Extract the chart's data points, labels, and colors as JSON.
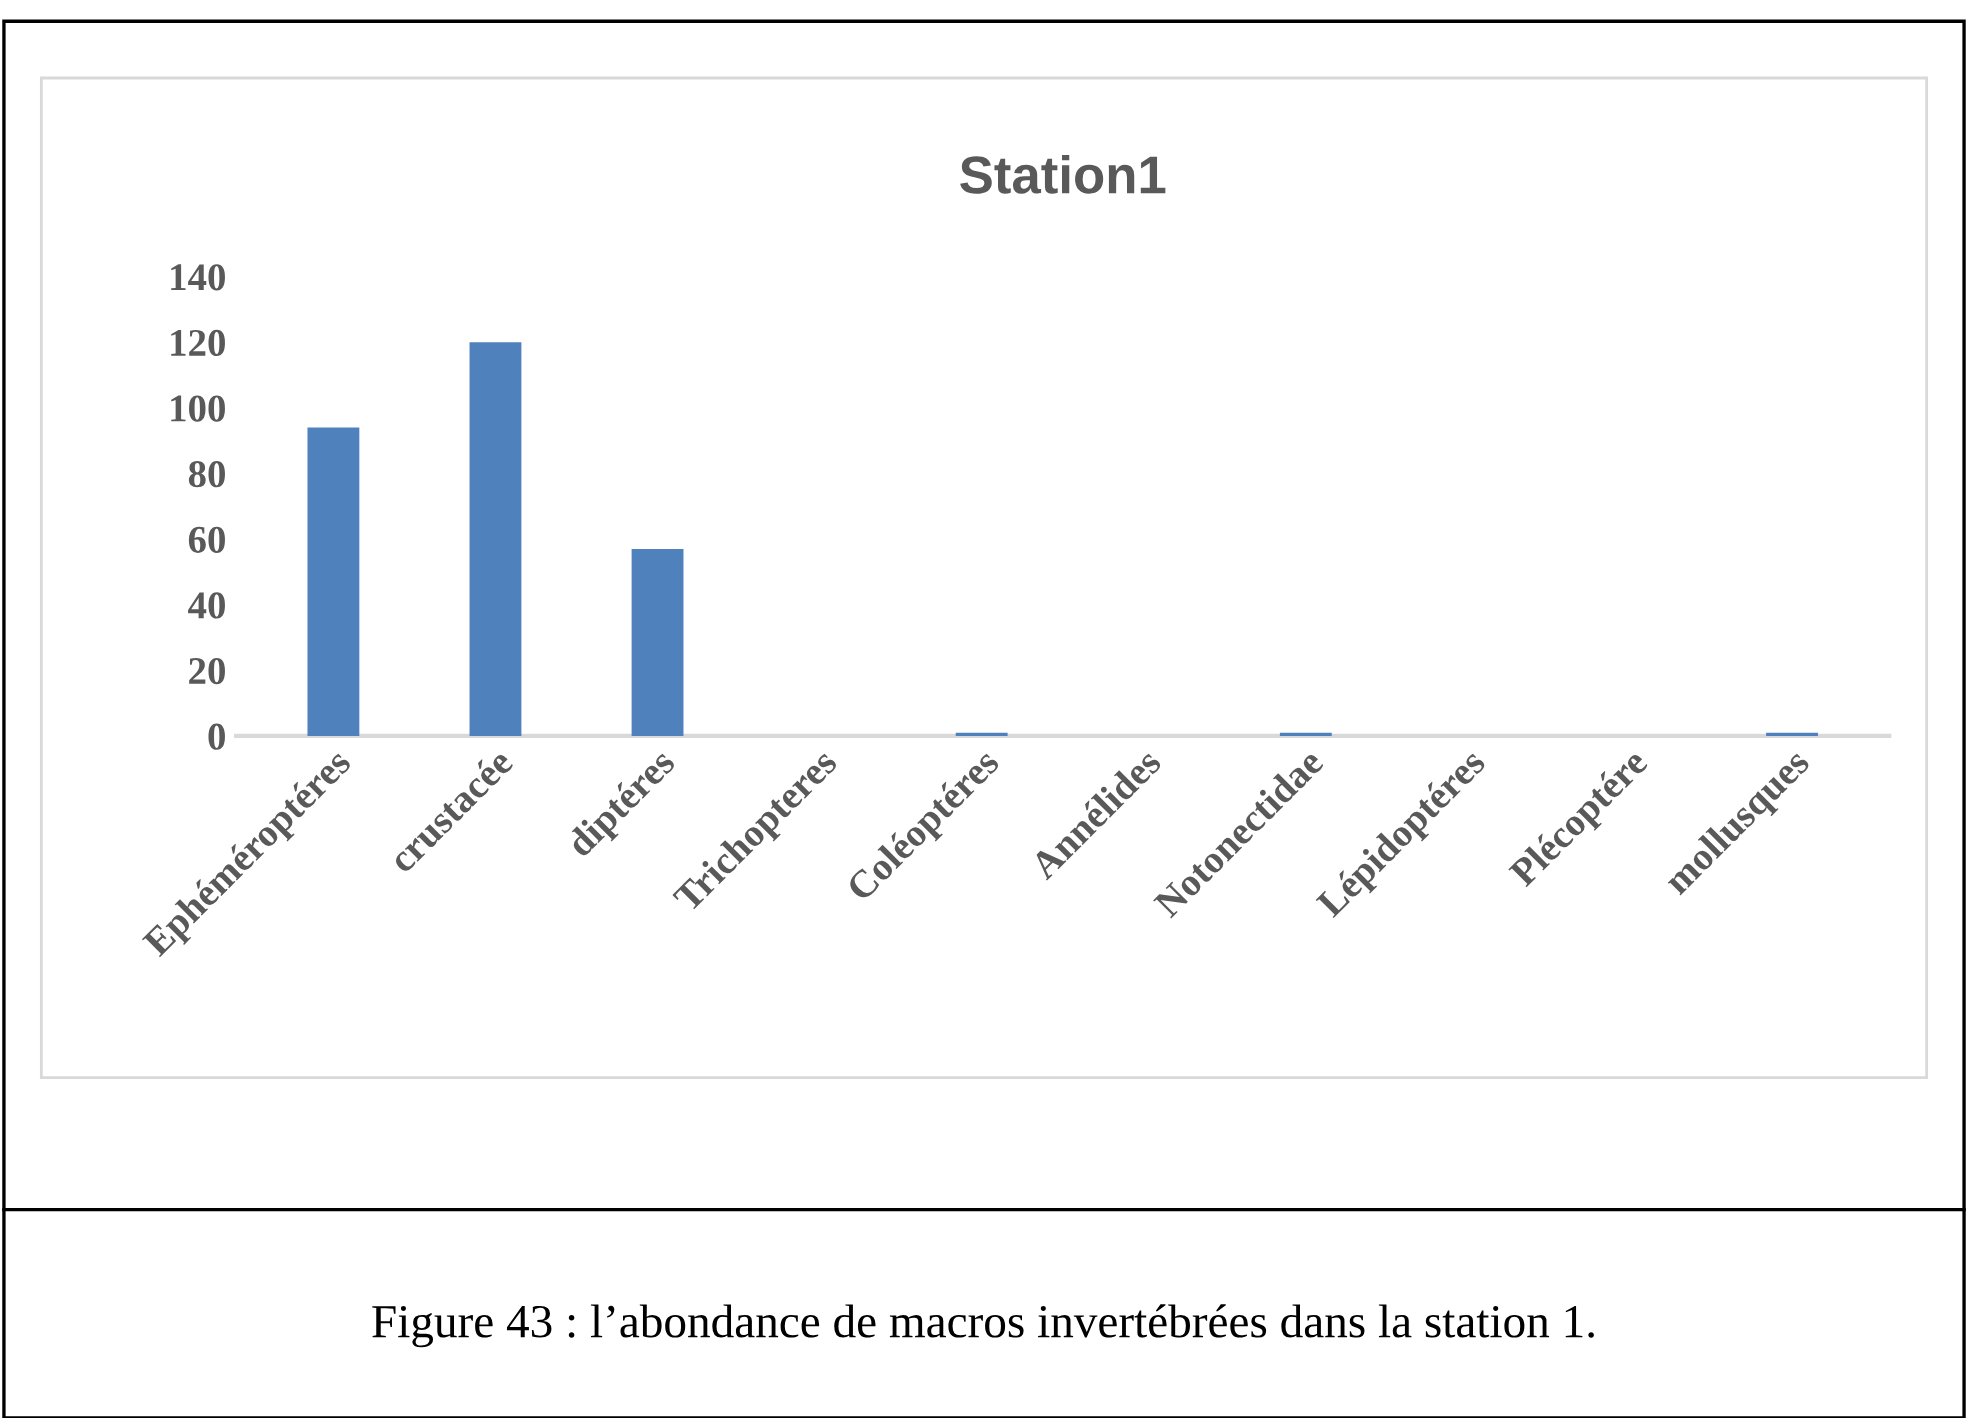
{
  "chart_data": {
    "type": "bar",
    "title": "Station1",
    "categories": [
      "Ephéméroptéres",
      "crustacée",
      "diptéres",
      "Trichopteres",
      "Coléoptéres",
      "Annélides",
      "Notonectidae",
      "Lépidoptéres",
      "Plécoptére",
      "mollusques"
    ],
    "values": [
      94,
      120,
      57,
      0,
      1,
      0,
      1,
      0,
      0,
      1
    ],
    "color": "#4f81bd",
    "ylim": [
      0,
      140
    ],
    "yticks": [
      0,
      20,
      40,
      60,
      80,
      100,
      120,
      140
    ],
    "grid": false,
    "annotations": [
      "Figure 43 : l’abondance de macros invertébrées dans la station 1."
    ]
  }
}
